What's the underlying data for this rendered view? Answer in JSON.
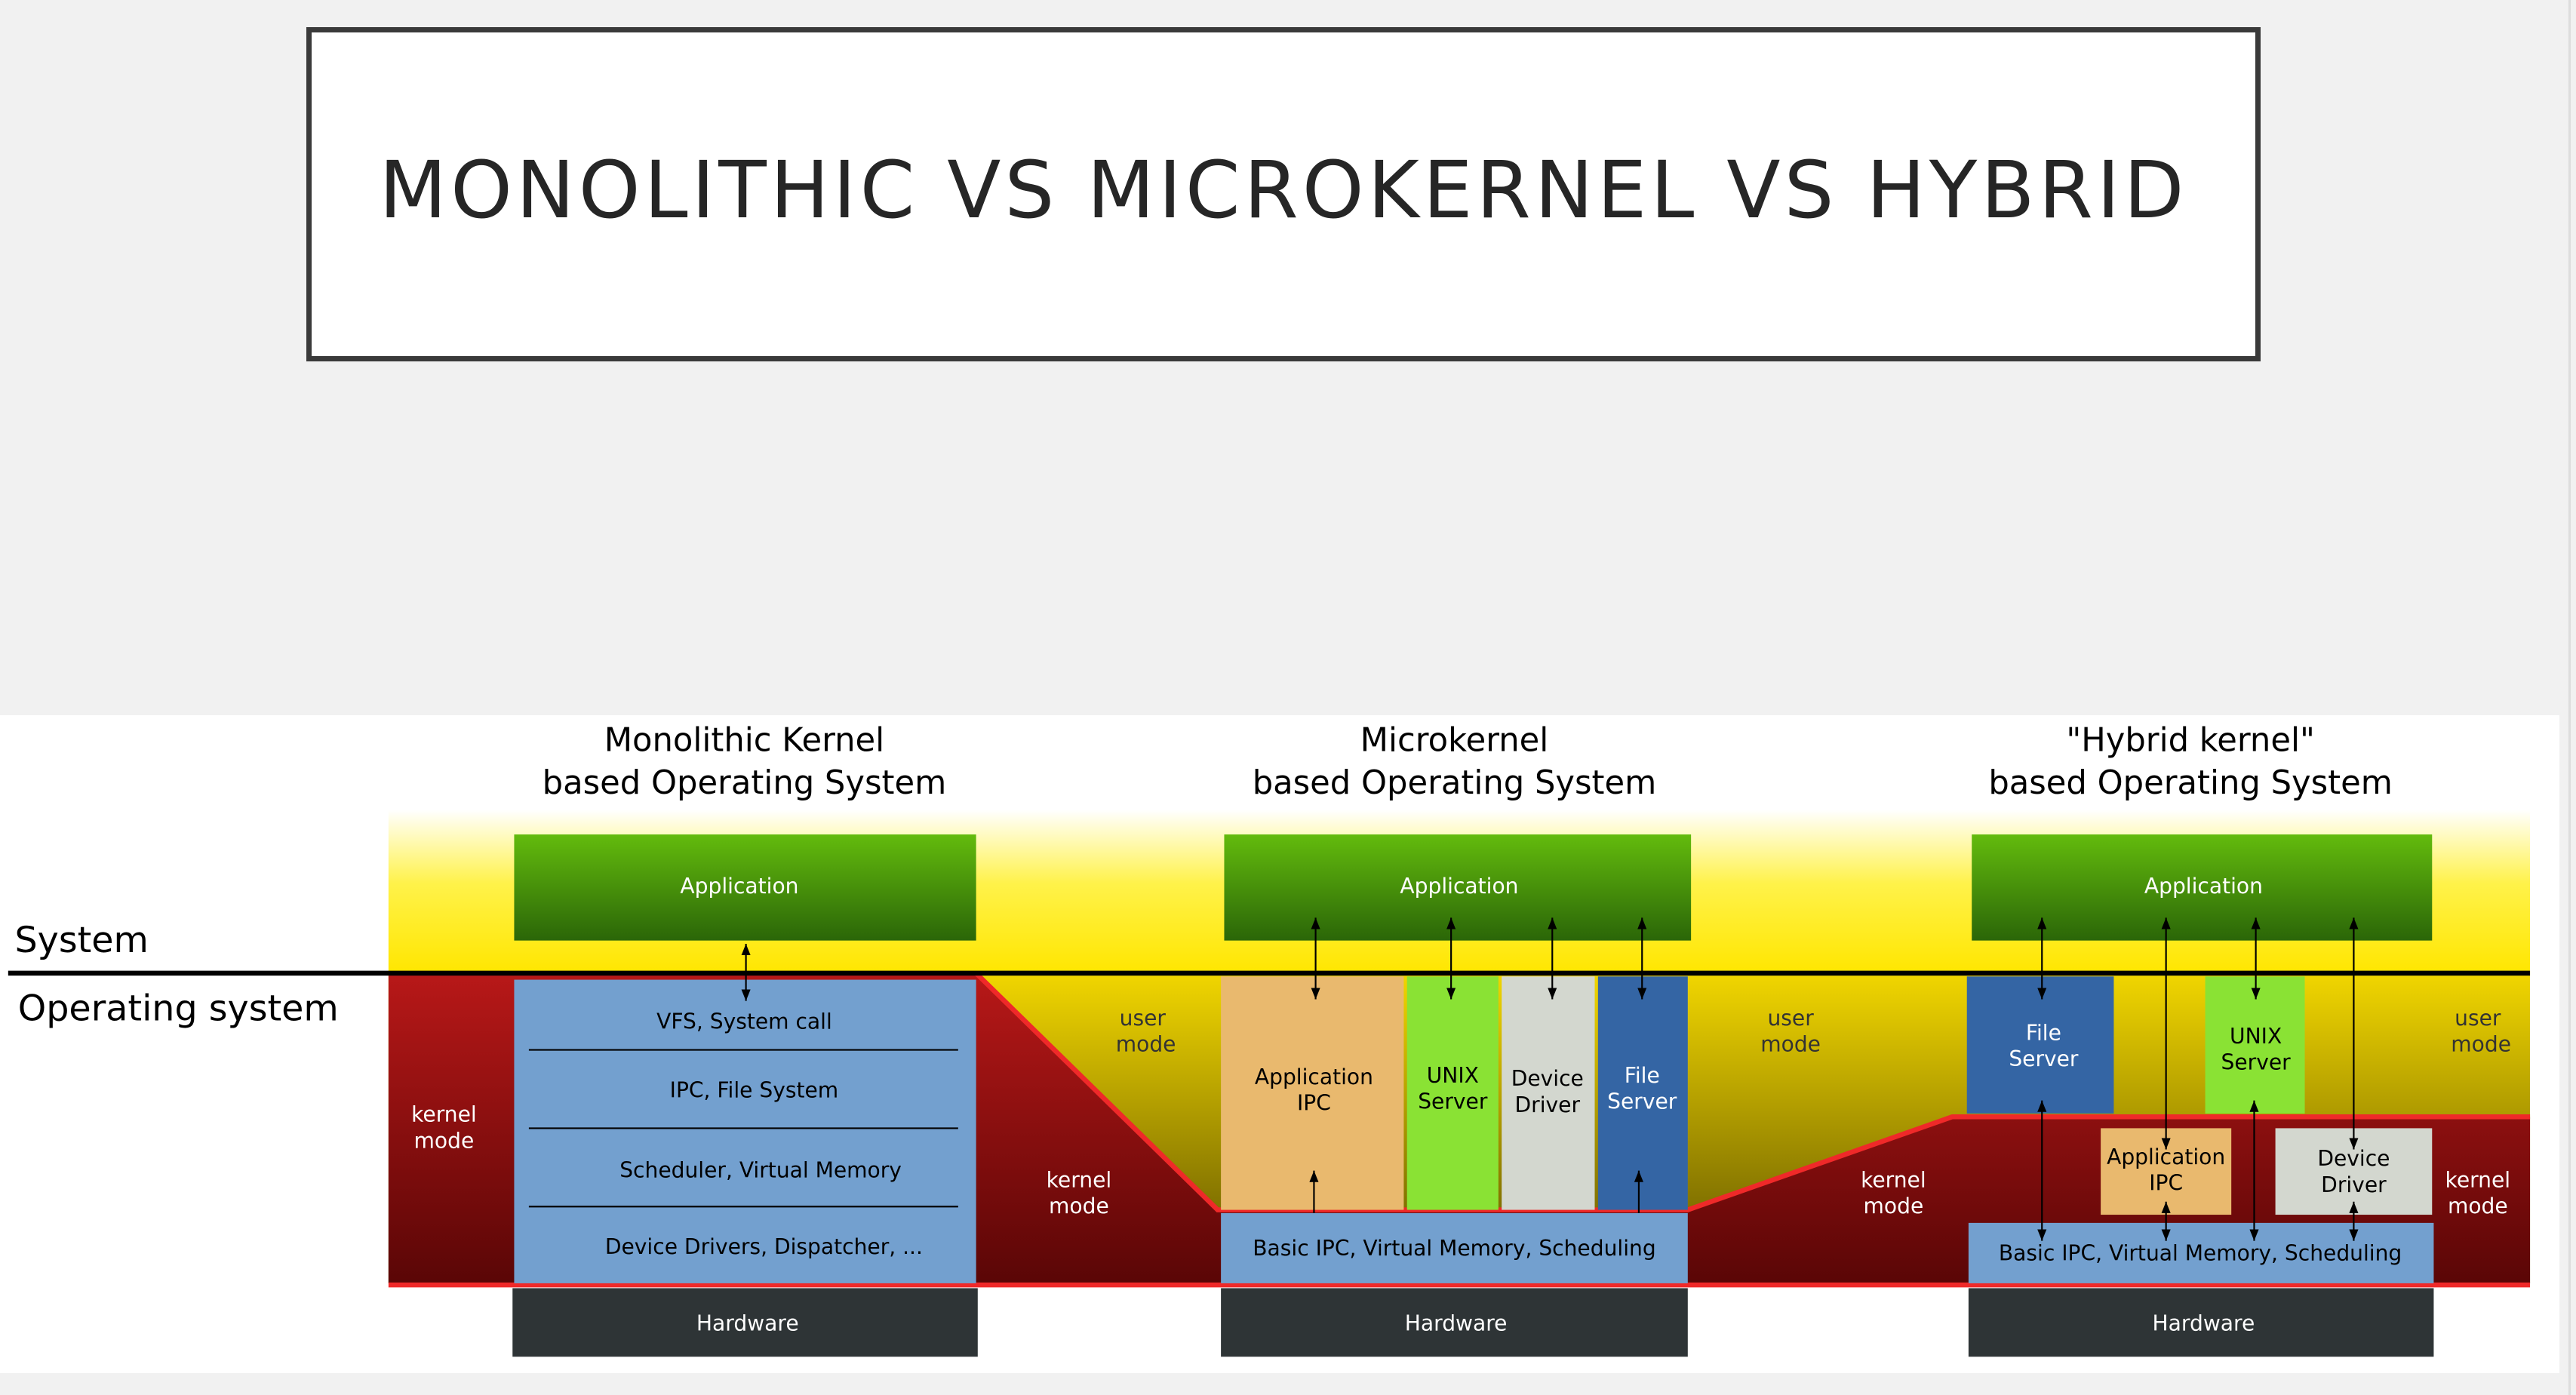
{
  "slide": {
    "title": "MONOLITHIC VS MICROKERNEL VS HYBRID"
  },
  "diagram": {
    "row_labels": {
      "system": "System",
      "operating_system": "Operating system"
    },
    "monolithic": {
      "title_line1": "Monolithic Kernel",
      "title_line2": "based Operating System",
      "application": "Application",
      "layers": [
        "VFS, System call",
        "IPC, File System",
        "Scheduler, Virtual Memory",
        "Device Drivers, Dispatcher, ..."
      ],
      "hardware": "Hardware",
      "kernel_mode_left": [
        "kernel",
        "mode"
      ],
      "kernel_mode_right": [
        "kernel",
        "mode"
      ],
      "user_mode": [
        "user",
        "mode"
      ]
    },
    "microkernel": {
      "title_line1": "Microkernel",
      "title_line2": "based Operating System",
      "application": "Application",
      "servers": [
        [
          "Application",
          "IPC"
        ],
        [
          "UNIX",
          "Server"
        ],
        [
          "Device",
          "Driver"
        ],
        [
          "File",
          "Server"
        ]
      ],
      "basic": "Basic IPC, Virtual Memory, Scheduling",
      "hardware": "Hardware",
      "user_mode": [
        "user",
        "mode"
      ],
      "kernel_mode": [
        "kernel",
        "mode"
      ]
    },
    "hybrid": {
      "title_line1": "\"Hybrid kernel\"",
      "title_line2": "based Operating System",
      "application": "Application",
      "file_server": [
        "File",
        "Server"
      ],
      "unix_server": [
        "UNIX",
        "Server"
      ],
      "app_ipc": [
        "Application",
        "IPC"
      ],
      "device_driver": [
        "Device",
        "Driver"
      ],
      "basic": "Basic IPC, Virtual Memory, Scheduling",
      "hardware": "Hardware",
      "user_mode": [
        "user",
        "mode"
      ],
      "kernel_mode": [
        "kernel",
        "mode"
      ]
    },
    "colors": {
      "kernel_red": "#8f1010",
      "user_yellow": "#ffe600",
      "application_green": "#3b8a08",
      "layer_blue": "#73a0cf",
      "server_dark_blue": "#3465a4",
      "unix_green": "#8ae234",
      "driver_gray": "#d3d7cf",
      "app_ipc_orange": "#e9b96e",
      "hardware_dark": "#2e3436",
      "boundary_red": "#ef2929"
    }
  }
}
